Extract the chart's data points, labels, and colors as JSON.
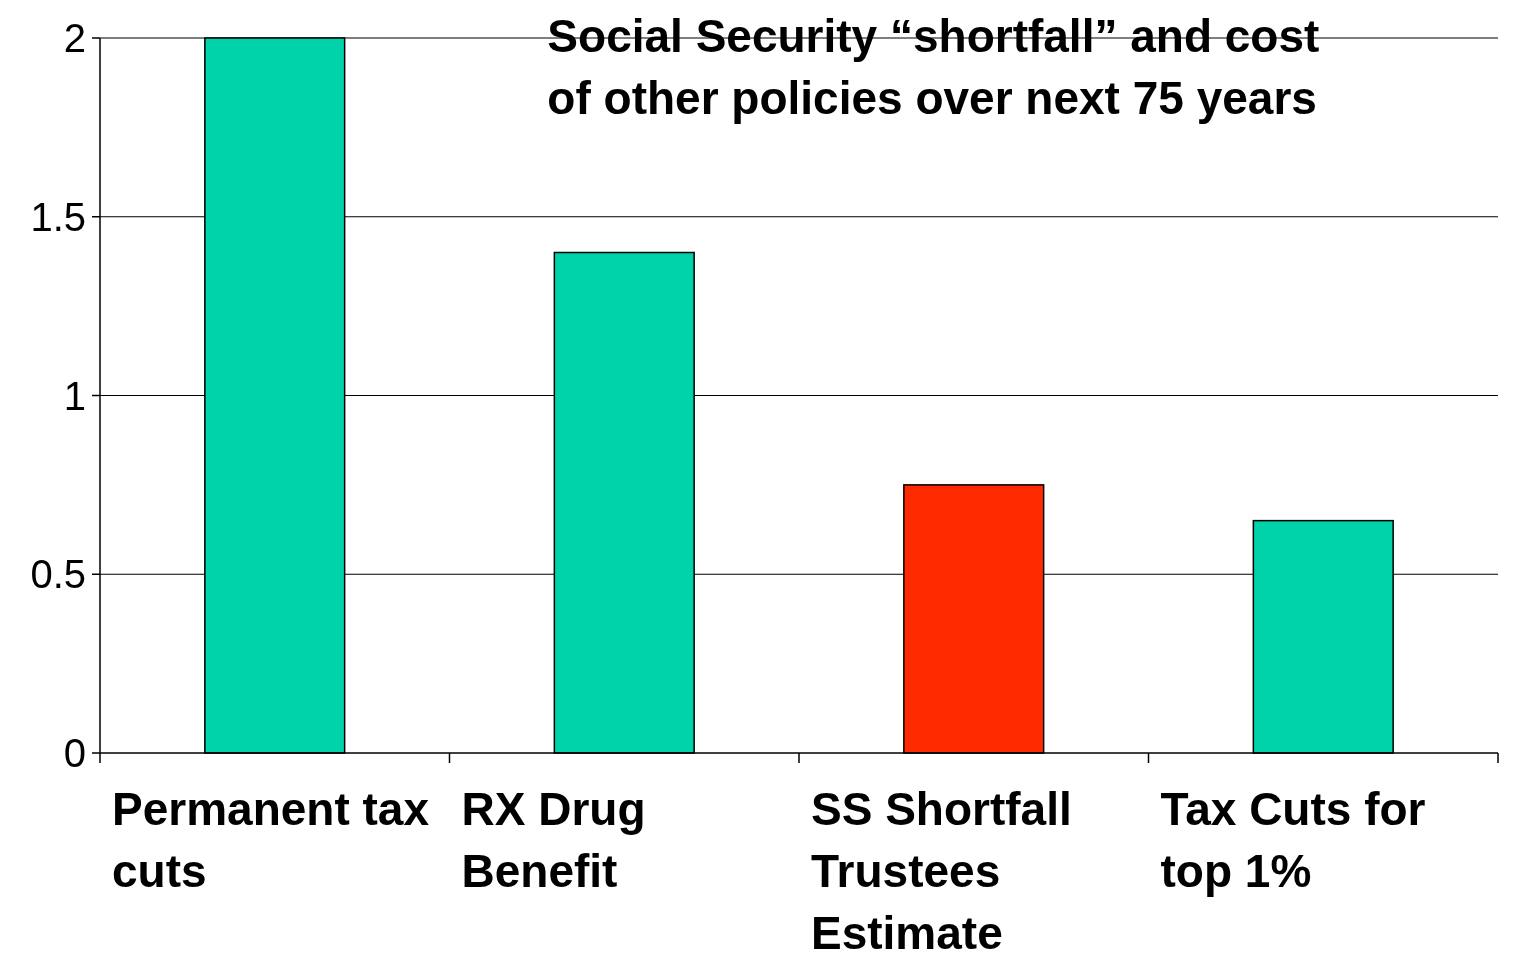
{
  "chart_data": {
    "type": "bar",
    "title": "Social Security “shortfall” and cost of other policies over next 75 years",
    "categories": [
      "Permanent tax cuts",
      "RX Drug Benefit",
      "SS Shortfall Trustees Estimate",
      "Tax Cuts for top 1%"
    ],
    "values": [
      2.0,
      1.4,
      0.75,
      0.65
    ],
    "colors": [
      "#00d2aa",
      "#00d2aa",
      "#ff2a00",
      "#00d2aa"
    ],
    "ylim": [
      0,
      2
    ],
    "yticks": [
      0,
      0.5,
      1,
      1.5,
      2
    ],
    "grid": "y"
  }
}
